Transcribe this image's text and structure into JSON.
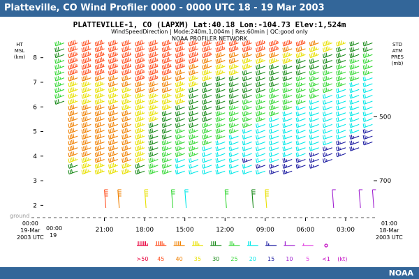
{
  "header": {
    "title": "Platteville, CO Wind Profiler 0000 - 0000 UTC  18 - 19 Mar 2003"
  },
  "footer": {
    "brand": "NOAA"
  },
  "chart_data": {
    "type": "wind-barb",
    "title": "PLATTEVILLE-1, CO (LAPXM)  Lat:40.18 Lon:-104.73 Elev:1,524m",
    "subtitle": "WindSpeedDirection | Mode:240m,1,004m | Res:60min | QC:good only",
    "network": "NOAA PROFILER NETWORK",
    "y_axis_left": {
      "label": [
        "HT",
        "MSL",
        "(km)"
      ],
      "ticks": [
        2,
        3,
        4,
        5,
        6,
        7,
        8
      ],
      "range": [
        1.5,
        8.7
      ]
    },
    "y_axis_right": {
      "label": [
        "STD",
        "ATM",
        "PRES",
        "(mb)"
      ],
      "ticks": [
        {
          "mb": "500",
          "km": 5.6
        },
        {
          "mb": "700",
          "km": 3.0
        }
      ]
    },
    "ground_label": "ground",
    "x_axis": {
      "ticks": [
        "21:00",
        "18:00",
        "15:00",
        "12:00",
        "09:00",
        "06:00",
        "03:00"
      ],
      "left_end": [
        "00:00",
        "19-Mar",
        "2003 UTC"
      ],
      "left_end_sub": "19",
      "right_end": [
        "01:00",
        "18-Mar",
        "2003 UTC"
      ],
      "first_tick": "00:00"
    },
    "legend": {
      "items": [
        {
          "label": ">50",
          "color": "#e8003c"
        },
        {
          "label": "45",
          "color": "#ff5020"
        },
        {
          "label": "40",
          "color": "#f08000"
        },
        {
          "label": "35",
          "color": "#e8e000"
        },
        {
          "label": "30",
          "color": "#1a8a1a"
        },
        {
          "label": "25",
          "color": "#38d838"
        },
        {
          "label": "20",
          "color": "#00e8e8"
        },
        {
          "label": "15",
          "color": "#1a1aa0"
        },
        {
          "label": "10",
          "color": "#a020d0"
        },
        {
          "label": "5",
          "color": "#e040e0"
        },
        {
          "label": "<1",
          "color": "#c000c0"
        }
      ],
      "unit": "(kt)"
    },
    "columns": [
      {
        "time": "00:00",
        "speeds": [
          null,
          null,
          null,
          null,
          null,
          null,
          null,
          null,
          null,
          null,
          null,
          null,
          null,
          null,
          null,
          null,
          null,
          null,
          null,
          null,
          30,
          25,
          25,
          25,
          25,
          25,
          25,
          25,
          30,
          30,
          25
        ]
      },
      {
        "time": "23:00",
        "speeds": [
          null,
          null,
          null,
          null,
          null,
          null,
          null,
          null,
          30,
          30,
          35,
          40,
          40,
          40,
          40,
          40,
          40,
          40,
          40,
          40,
          35,
          35,
          35,
          35,
          40,
          45,
          45,
          45,
          45,
          50,
          50
        ]
      },
      {
        "time": "22:00",
        "speeds": [
          null,
          null,
          null,
          null,
          null,
          null,
          null,
          null,
          35,
          35,
          35,
          40,
          40,
          40,
          40,
          40,
          40,
          40,
          40,
          40,
          35,
          35,
          35,
          35,
          40,
          45,
          45,
          45,
          45,
          50,
          50
        ]
      },
      {
        "time": "21:00",
        "speeds": [
          null,
          null,
          null,
          null,
          null,
          null,
          null,
          null,
          35,
          35,
          40,
          40,
          40,
          40,
          40,
          40,
          40,
          40,
          40,
          40,
          35,
          35,
          35,
          35,
          40,
          45,
          45,
          45,
          45,
          50,
          50
        ]
      },
      {
        "time": "20:00",
        "speeds": [
          null,
          null,
          null,
          null,
          null,
          null,
          null,
          null,
          35,
          35,
          40,
          40,
          40,
          40,
          40,
          40,
          40,
          40,
          40,
          40,
          35,
          35,
          35,
          40,
          40,
          45,
          45,
          45,
          45,
          50,
          50
        ]
      },
      {
        "time": "19:00",
        "speeds": [
          null,
          null,
          null,
          null,
          null,
          null,
          null,
          null,
          35,
          35,
          40,
          40,
          40,
          40,
          40,
          40,
          40,
          40,
          40,
          35,
          35,
          35,
          35,
          40,
          40,
          45,
          45,
          45,
          45,
          50,
          50
        ]
      },
      {
        "time": "18:00",
        "speeds": [
          null,
          null,
          null,
          null,
          null,
          null,
          null,
          null,
          30,
          30,
          35,
          35,
          35,
          35,
          35,
          35,
          35,
          35,
          35,
          35,
          35,
          35,
          40,
          40,
          45,
          45,
          45,
          45,
          50,
          50,
          50
        ]
      },
      {
        "time": "17:00",
        "speeds": [
          null,
          null,
          null,
          null,
          null,
          null,
          null,
          null,
          25,
          25,
          25,
          30,
          30,
          30,
          30,
          30,
          30,
          35,
          35,
          35,
          35,
          35,
          40,
          40,
          45,
          45,
          45,
          45,
          50,
          50,
          50
        ]
      },
      {
        "time": "16:00",
        "speeds": [
          null,
          null,
          null,
          null,
          null,
          null,
          null,
          null,
          25,
          25,
          25,
          25,
          25,
          25,
          30,
          30,
          30,
          30,
          30,
          35,
          35,
          35,
          40,
          40,
          40,
          45,
          45,
          50,
          50,
          50,
          50
        ]
      },
      {
        "time": "15:00",
        "speeds": [
          null,
          null,
          null,
          null,
          null,
          null,
          null,
          null,
          20,
          20,
          20,
          25,
          25,
          25,
          25,
          25,
          30,
          30,
          30,
          30,
          35,
          35,
          35,
          35,
          40,
          40,
          45,
          45,
          50,
          50,
          50
        ]
      },
      {
        "time": "14:00",
        "speeds": [
          null,
          null,
          null,
          null,
          null,
          null,
          null,
          null,
          20,
          20,
          20,
          25,
          25,
          25,
          25,
          25,
          30,
          30,
          30,
          30,
          30,
          30,
          30,
          35,
          35,
          40,
          40,
          45,
          45,
          50,
          50
        ]
      },
      {
        "time": "13:00",
        "speeds": [
          null,
          null,
          null,
          null,
          null,
          null,
          null,
          null,
          20,
          20,
          20,
          20,
          20,
          25,
          25,
          25,
          25,
          30,
          30,
          30,
          30,
          30,
          30,
          30,
          35,
          35,
          40,
          40,
          45,
          50,
          50
        ]
      },
      {
        "time": "12:00",
        "speeds": [
          null,
          null,
          null,
          null,
          null,
          null,
          null,
          null,
          20,
          20,
          20,
          20,
          20,
          20,
          25,
          25,
          25,
          25,
          25,
          30,
          30,
          30,
          30,
          30,
          30,
          35,
          35,
          40,
          40,
          45,
          50
        ]
      },
      {
        "time": "11:00",
        "speeds": [
          null,
          null,
          null,
          null,
          null,
          null,
          null,
          null,
          20,
          20,
          20,
          20,
          20,
          20,
          20,
          25,
          25,
          25,
          25,
          25,
          30,
          30,
          30,
          30,
          30,
          35,
          35,
          40,
          40,
          45,
          50
        ]
      },
      {
        "time": "10:00",
        "speeds": [
          null,
          null,
          null,
          null,
          null,
          null,
          null,
          null,
          20,
          20,
          15,
          20,
          20,
          20,
          20,
          20,
          25,
          25,
          25,
          25,
          25,
          30,
          30,
          30,
          30,
          30,
          35,
          35,
          40,
          45,
          50
        ]
      },
      {
        "time": "09:00",
        "speeds": [
          null,
          null,
          null,
          null,
          null,
          null,
          null,
          null,
          20,
          15,
          20,
          20,
          20,
          20,
          20,
          20,
          20,
          25,
          25,
          25,
          25,
          25,
          30,
          30,
          30,
          30,
          30,
          35,
          40,
          45,
          45
        ]
      },
      {
        "time": "08:00",
        "speeds": [
          null,
          null,
          null,
          null,
          null,
          null,
          null,
          null,
          15,
          15,
          20,
          20,
          20,
          20,
          20,
          20,
          20,
          20,
          25,
          25,
          25,
          25,
          25,
          30,
          30,
          30,
          30,
          35,
          40,
          45,
          45
        ]
      },
      {
        "time": "07:00",
        "speeds": [
          null,
          null,
          null,
          null,
          null,
          null,
          null,
          null,
          15,
          15,
          15,
          20,
          20,
          20,
          20,
          20,
          20,
          20,
          20,
          25,
          25,
          25,
          25,
          25,
          30,
          30,
          30,
          35,
          35,
          40,
          45
        ]
      },
      {
        "time": "06:00",
        "speeds": [
          null,
          null,
          null,
          null,
          null,
          null,
          null,
          null,
          null,
          15,
          15,
          20,
          20,
          20,
          20,
          20,
          20,
          20,
          20,
          20,
          25,
          25,
          25,
          25,
          25,
          30,
          30,
          30,
          35,
          40,
          45
        ]
      },
      {
        "time": "05:00",
        "speeds": [
          null,
          null,
          null,
          null,
          null,
          null,
          null,
          null,
          null,
          15,
          15,
          15,
          20,
          20,
          20,
          20,
          20,
          20,
          20,
          20,
          20,
          25,
          25,
          25,
          25,
          25,
          30,
          30,
          35,
          35,
          40
        ]
      },
      {
        "time": "04:00",
        "speeds": [
          null,
          null,
          null,
          null,
          null,
          null,
          null,
          null,
          null,
          null,
          15,
          15,
          15,
          20,
          20,
          20,
          20,
          20,
          20,
          20,
          20,
          20,
          25,
          25,
          25,
          25,
          30,
          30,
          30,
          35,
          35
        ]
      },
      {
        "time": "03:00",
        "speeds": [
          null,
          null,
          null,
          null,
          null,
          null,
          null,
          null,
          null,
          null,
          null,
          15,
          15,
          15,
          20,
          20,
          20,
          20,
          20,
          20,
          20,
          20,
          20,
          25,
          25,
          25,
          25,
          30,
          30,
          30,
          35
        ]
      },
      {
        "time": "02:00",
        "speeds": [
          null,
          null,
          null,
          null,
          null,
          null,
          null,
          null,
          null,
          null,
          null,
          null,
          15,
          15,
          15,
          20,
          20,
          20,
          20,
          20,
          20,
          20,
          20,
          20,
          25,
          25,
          25,
          25,
          30,
          30,
          30
        ]
      },
      {
        "time": "01:00",
        "speeds": [
          null,
          null,
          null,
          null,
          null,
          null,
          null,
          null,
          null,
          null,
          null,
          null,
          null,
          15,
          15,
          15,
          20,
          20,
          20,
          20,
          20,
          20,
          20,
          20,
          20,
          25,
          25,
          25,
          25,
          30,
          30
        ]
      }
    ],
    "low_level_barbs": [
      {
        "time": "21:00",
        "speed": 45
      },
      {
        "time": "20:00",
        "speed": 40
      },
      {
        "time": "18:00",
        "speed": 35
      },
      {
        "time": "16:00",
        "speed": 25
      },
      {
        "time": "15:00",
        "speed": 20
      },
      {
        "time": "12:00",
        "speed": 25
      },
      {
        "time": "10:00",
        "speed": 30
      },
      {
        "time": "09:00",
        "speed": 35
      },
      {
        "time": "04:00",
        "speed": 10
      },
      {
        "time": "02:00",
        "speed": 10
      },
      {
        "time": "01:00",
        "speed": 10
      }
    ]
  }
}
